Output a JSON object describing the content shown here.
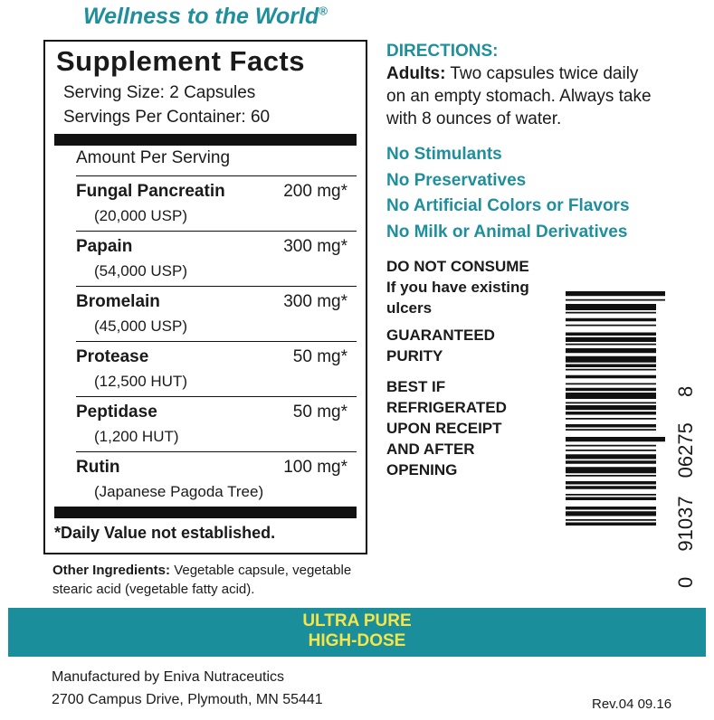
{
  "header": {
    "tagline": "Wellness to the World",
    "trademark": "®"
  },
  "facts": {
    "title": "Supplement Facts",
    "serving_size": "Serving Size: 2 Capsules",
    "servings_per_container": "Servings Per Container: 60",
    "amount_header": "Amount Per Serving",
    "rows": [
      {
        "name": "Fungal Pancreatin",
        "amount": "200 mg*",
        "detail": "(20,000 USP)"
      },
      {
        "name": "Papain",
        "amount": "300 mg*",
        "detail": "(54,000 USP)"
      },
      {
        "name": "Bromelain",
        "amount": "300 mg*",
        "detail": "(45,000 USP)"
      },
      {
        "name": "Protease",
        "amount": "50 mg*",
        "detail": "(12,500 HUT)"
      },
      {
        "name": "Peptidase",
        "amount": "50 mg*",
        "detail": "(1,200 HUT)"
      },
      {
        "name": "Rutin",
        "amount": "100 mg*",
        "detail": "(Japanese Pagoda Tree)"
      }
    ],
    "footnote": "*Daily Value not established."
  },
  "other_ingredients": {
    "label": "Other Ingredients:",
    "text": "Vegetable capsule, vegetable stearic acid (vegetable fatty acid)."
  },
  "directions": {
    "heading": "DIRECTIONS:",
    "label": "Adults:",
    "text": "Two capsules twice daily on an empty stomach. Always take with 8 ounces of water."
  },
  "claims": [
    "No Stimulants",
    "No Preservatives",
    "No Artificial Colors or Flavors",
    "No Milk or Animal Derivatives"
  ],
  "warnings": [
    {
      "heading": "DO NOT CONSUME",
      "text": "If you have existing ulcers"
    },
    {
      "text": "GUARANTEED PURITY"
    },
    {
      "text": "BEST IF REFRIGERATED UPON RECEIPT AND AFTER OPENING"
    }
  ],
  "barcode": [
    "0",
    "91037",
    "06275",
    "8"
  ],
  "banner": [
    "ULTRA PURE",
    "HIGH-DOSE"
  ],
  "footer": {
    "manufacturer": "Manufactured by Eniva Nutraceutics",
    "address": "2700 Campus Drive, Plymouth, MN 55441",
    "revision": "Rev.04 09.16"
  }
}
